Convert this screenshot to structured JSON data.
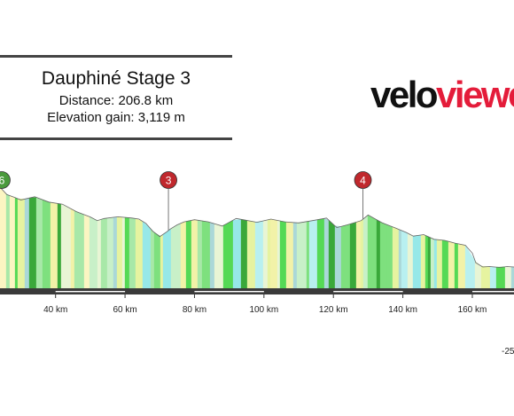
{
  "title": {
    "name": "Dauphiné Stage 3",
    "distance": "Distance: 206.8 km",
    "elevation": "Elevation gain: 3,119 m"
  },
  "logo": {
    "part1": "velo",
    "part2": "viewer"
  },
  "colors": {
    "red_marker": "#c0282d",
    "green_marker": "#4a9a3c",
    "road_bar": "#3a3a3a",
    "road_stripe": "#ffffff"
  },
  "chart_data": {
    "type": "area",
    "title": "Dauphiné Stage 3",
    "xlabel": "",
    "ylabel": "",
    "x_unit": "km",
    "xlim": [
      24,
      172
    ],
    "x_ticks": [
      "40 km",
      "60 km",
      "80 km",
      "100 km",
      "120 km",
      "140 km",
      "160 km"
    ],
    "x_tick_values": [
      40,
      60,
      80,
      100,
      120,
      140,
      160
    ],
    "gradient_label": "-25",
    "profile": {
      "x": [
        24,
        26,
        28,
        30,
        34,
        38,
        42,
        46,
        50,
        52,
        54,
        58,
        62,
        64,
        66,
        68,
        70,
        72,
        73,
        75,
        77,
        80,
        84,
        88,
        92,
        94,
        98,
        102,
        106,
        110,
        114,
        118,
        121,
        124,
        128,
        130,
        134,
        138,
        141,
        143,
        146,
        149,
        152,
        155,
        158,
        160,
        161,
        163,
        165,
        168,
        170,
        172
      ],
      "elevation": [
        475,
        440,
        428,
        415,
        430,
        405,
        395,
        360,
        335,
        318,
        328,
        336,
        330,
        325,
        305,
        268,
        243,
        265,
        278,
        298,
        312,
        322,
        312,
        292,
        328,
        322,
        310,
        325,
        312,
        307,
        318,
        330,
        285,
        298,
        318,
        344,
        308,
        282,
        262,
        245,
        252,
        230,
        225,
        212,
        202,
        165,
        120,
        100,
        102,
        98,
        102,
        100
      ]
    },
    "segment_colors": [
      "#3aa83a",
      "#7ee07e",
      "#a8e8a8",
      "#c8f0c8",
      "#e6f3a0",
      "#f2f2a8",
      "#fbf5c2",
      "#96e8e8",
      "#b8f0f0",
      "#aad8d8",
      "#55d955",
      "#e8f5d5"
    ],
    "markers": [
      {
        "label": "6",
        "km": 24.5,
        "color": "green"
      },
      {
        "label": "3",
        "km": 72.5,
        "color": "red"
      },
      {
        "label": "4",
        "km": 128.5,
        "color": "red"
      }
    ]
  }
}
